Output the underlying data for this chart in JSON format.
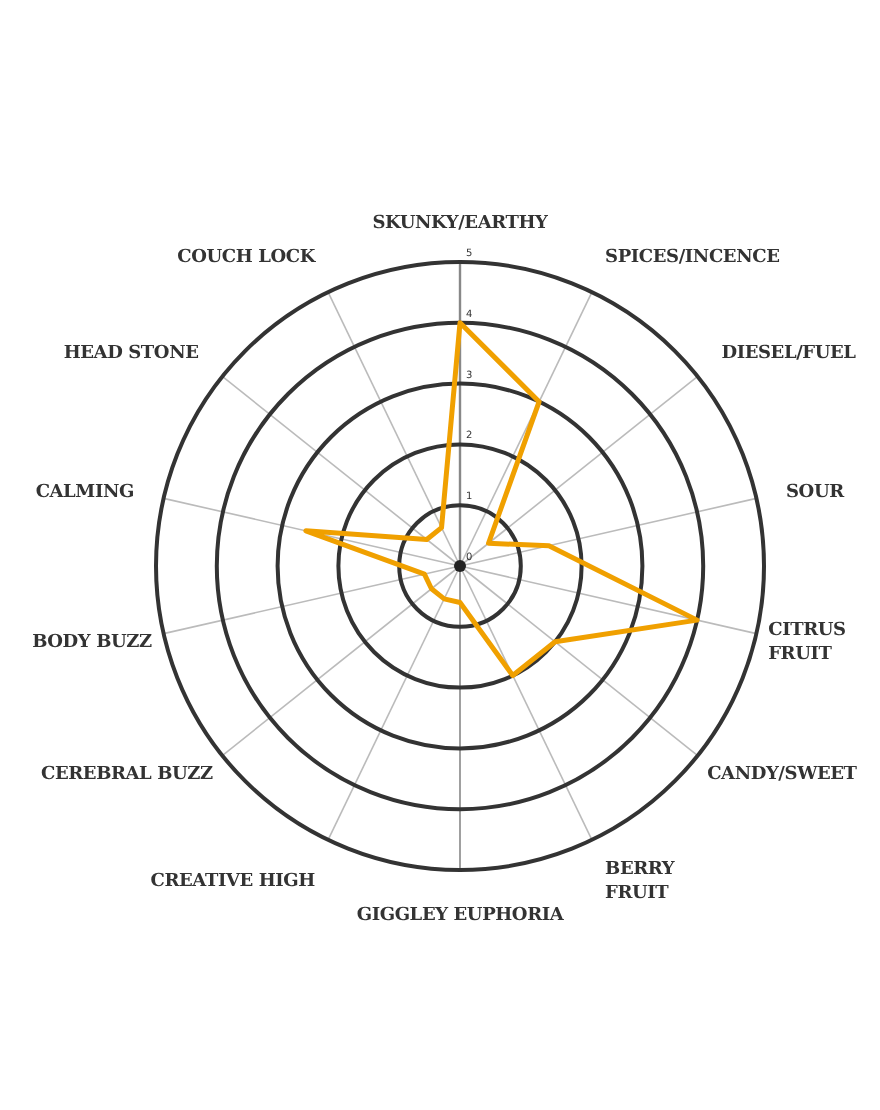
{
  "chart_data": {
    "type": "radar",
    "categories": [
      "SKUNKY/EARTHY",
      "SPICES/INCENCE",
      "DIESEL/FUEL",
      "SOUR",
      "CITRUS\nFRUIT",
      "CANDY/SWEET",
      "BERRY\nFRUIT",
      "GIGGLEY EUPHORIA",
      "CREATIVE HIGH",
      "CEREBRAL BUZZ",
      "BODY BUZZ",
      "CALMING",
      "HEAD STONE",
      "COUCH LOCK"
    ],
    "series": [
      {
        "color": "#f0a000",
        "values": [
          4,
          3,
          0.6,
          1.5,
          4,
          2,
          2,
          0.6,
          0.6,
          0.6,
          0.6,
          2.6,
          0.7,
          0.7
        ]
      }
    ],
    "ylim": [
      0,
      5
    ],
    "yticks": [
      0,
      1,
      2,
      3,
      4,
      5
    ],
    "marker": "none",
    "line_style": "solid"
  }
}
